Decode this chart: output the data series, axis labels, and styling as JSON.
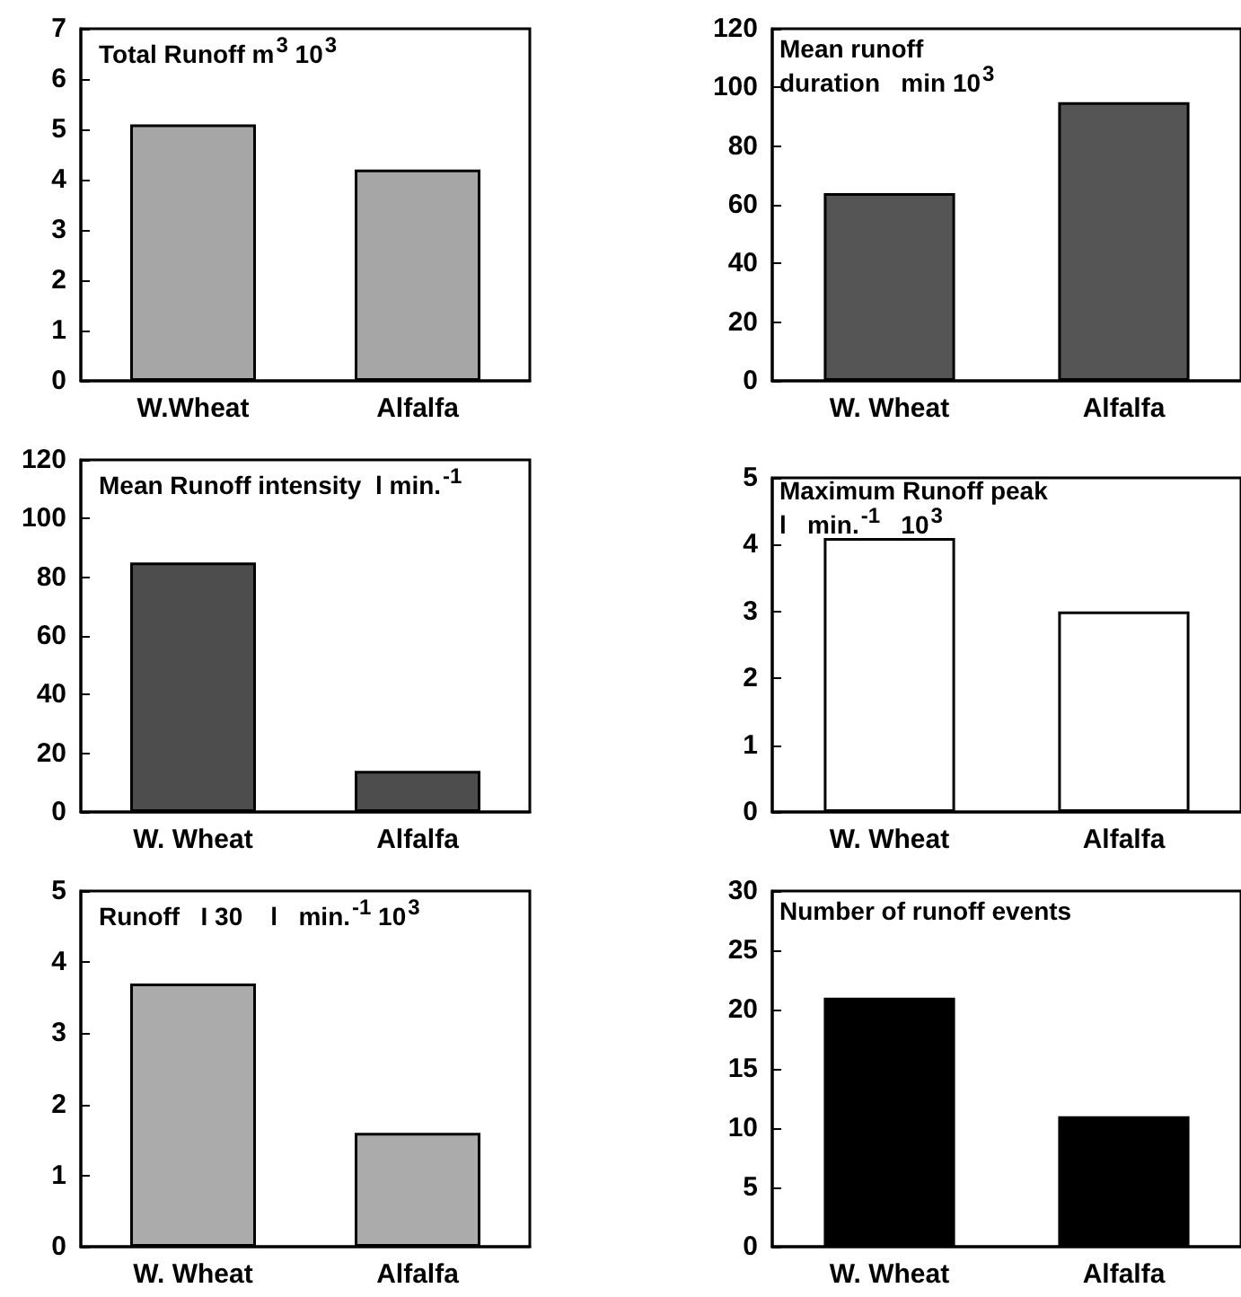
{
  "chart_data": [
    {
      "type": "bar",
      "title": "Total Runoff m$^{3}$ 10$^{3}$",
      "categories": [
        "W.Wheat",
        "Alfalfa"
      ],
      "values": [
        5.1,
        4.2
      ],
      "color": "#a6a6a6",
      "ylim": [
        0,
        7
      ],
      "yticks": [
        0,
        1,
        2,
        3,
        4,
        5,
        6,
        7
      ],
      "grid": false
    },
    {
      "type": "bar",
      "title": "Mean runoff\nduration   min 10$^{3}$",
      "categories": [
        "W. Wheat",
        "Alfalfa"
      ],
      "values": [
        64,
        95
      ],
      "color": "#555555",
      "ylim": [
        0,
        120
      ],
      "yticks": [
        0,
        20,
        40,
        60,
        80,
        100,
        120
      ],
      "grid": false
    },
    {
      "type": "bar",
      "title": "Mean Runoff intensity  l min.$^{-1}$",
      "categories": [
        "W. Wheat",
        "Alfalfa"
      ],
      "values": [
        85,
        14
      ],
      "color": "#4d4d4d",
      "ylim": [
        0,
        120
      ],
      "yticks": [
        0,
        20,
        40,
        60,
        80,
        100,
        120
      ],
      "grid": false
    },
    {
      "type": "bar",
      "title": "Maximum Runoff peak\nl   min.$^{-1}$   10$^{3}$",
      "categories": [
        "W. Wheat",
        "Alfalfa"
      ],
      "values": [
        4.1,
        3.0
      ],
      "color": "#ffffff",
      "ylim": [
        0,
        5
      ],
      "yticks": [
        0,
        1,
        2,
        3,
        4,
        5
      ],
      "grid": false
    },
    {
      "type": "bar",
      "title": "Runoff   I 30    l   min.$^{-1}$ 10$^{3}$",
      "categories": [
        "W. Wheat",
        "Alfalfa"
      ],
      "values": [
        3.7,
        1.6
      ],
      "color": "#ababab",
      "ylim": [
        0,
        5
      ],
      "yticks": [
        0,
        1,
        2,
        3,
        4,
        5
      ],
      "grid": false
    },
    {
      "type": "bar",
      "title": "Number of runoff events",
      "categories": [
        "W. Wheat",
        "Alfalfa"
      ],
      "values": [
        21,
        11
      ],
      "color": "#000000",
      "ylim": [
        0,
        30
      ],
      "yticks": [
        0,
        5,
        10,
        15,
        20,
        25,
        30
      ],
      "grid": false
    }
  ]
}
